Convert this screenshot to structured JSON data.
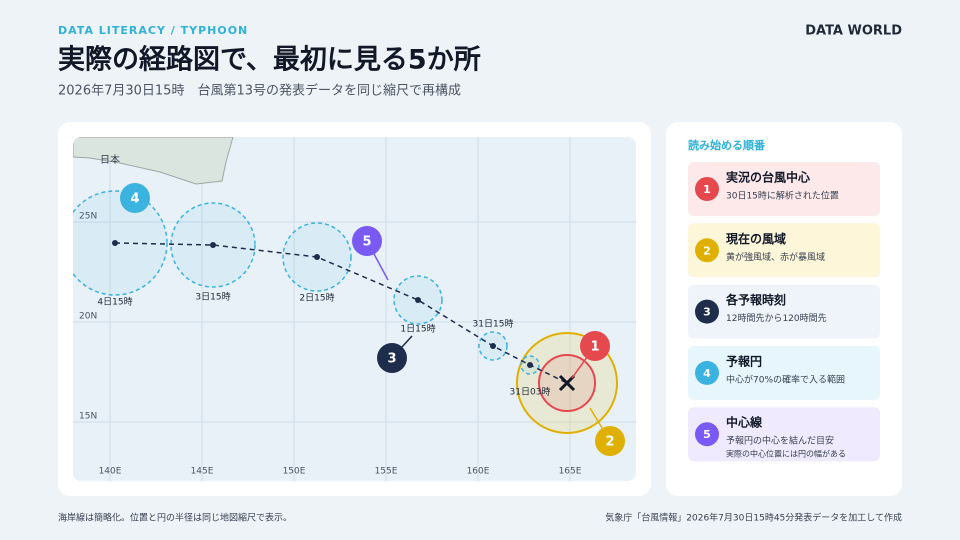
{
  "header": {
    "kicker": "DATA LITERACY / TYPHOON",
    "title": "実際の経路図で、最初に見る5か所",
    "subtitle": "2026年7月30日15時　台風第13号の発表データを同じ縮尺で再構成",
    "brand": "DATA WORLD"
  },
  "map": {
    "region_label": "日本",
    "lat_labels": [
      "25N",
      "20N",
      "15N"
    ],
    "lon_labels": [
      "140E",
      "145E",
      "150E",
      "155E",
      "160E",
      "165E"
    ],
    "track_labels": [
      "4日15時",
      "3日15時",
      "2日15時",
      "1日15時",
      "31日15時",
      "31日03時"
    ]
  },
  "legend": {
    "title": "読み始める順番",
    "items": [
      {
        "number": "1",
        "title": "実況の台風中心",
        "description": [
          "30日15時に解析された位置"
        ]
      },
      {
        "number": "2",
        "title": "現在の風域",
        "description": [
          "黄が強風域、赤が暴風域"
        ]
      },
      {
        "number": "3",
        "title": "各予報時刻",
        "description": [
          "12時間先から120時間先"
        ]
      },
      {
        "number": "4",
        "title": "予報円",
        "description": [
          "中心が70%の確率で入る範囲"
        ]
      },
      {
        "number": "5",
        "title": "中心線",
        "description": [
          "予報円の中心を結んだ目安",
          "実際の中心位置には円の幅がある"
        ]
      }
    ]
  },
  "footer": {
    "note": "海岸線は簡略化。位置と円の半径は同じ地図縮尺で表示。",
    "source": "気象庁「台風情報」2026年7月30日15時45分発表データを加工して作成"
  }
}
